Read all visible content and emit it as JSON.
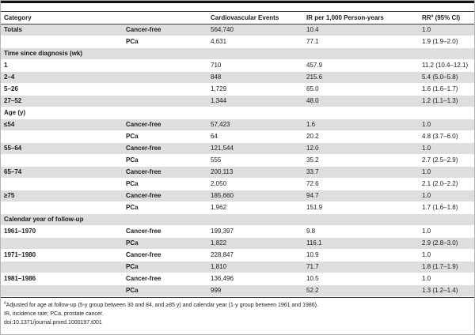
{
  "table": {
    "header": {
      "category": "Category",
      "events": "Cardiovascular Events",
      "ir": "IR per 1,000 Person-years",
      "rr_base": "RR",
      "rr_sup": "a",
      "rr_rest": " (95% CI)"
    },
    "rows": [
      {
        "type": "data",
        "shaded": true,
        "category": "Totals",
        "group": "Cancer-free",
        "events": "564,740",
        "ir": "10.4",
        "rr": "1.0"
      },
      {
        "type": "data",
        "shaded": false,
        "category": "",
        "group": "PCa",
        "events": "4,631",
        "ir": "77.1",
        "rr": "1.9 (1.9–2.0)"
      },
      {
        "type": "section",
        "shaded": true,
        "label": "Time since diagnosis (wk)"
      },
      {
        "type": "data",
        "shaded": false,
        "category": "1",
        "group": "",
        "events": "710",
        "ir": "457.9",
        "rr": "11.2 (10.4–12.1)"
      },
      {
        "type": "data",
        "shaded": true,
        "category": "2–4",
        "group": "",
        "events": "848",
        "ir": "215.6",
        "rr": "5.4 (5.0–5.8)"
      },
      {
        "type": "data",
        "shaded": false,
        "category": "5–26",
        "group": "",
        "events": "1,729",
        "ir": "65.0",
        "rr": "1.6 (1.6–1.7)"
      },
      {
        "type": "data",
        "shaded": true,
        "category": "27–52",
        "group": "",
        "events": "1,344",
        "ir": "48.0",
        "rr": "1.2 (1.1–1.3)"
      },
      {
        "type": "section",
        "shaded": false,
        "label": "Age (y)"
      },
      {
        "type": "data",
        "shaded": true,
        "category": "≤54",
        "group": "Cancer-free",
        "events": "57,423",
        "ir": "1.6",
        "rr": "1.0"
      },
      {
        "type": "data",
        "shaded": false,
        "category": "",
        "group": "PCa",
        "events": "64",
        "ir": "20.2",
        "rr": "4.8 (3.7–6.0)"
      },
      {
        "type": "data",
        "shaded": true,
        "category": "55–64",
        "group": "Cancer-free",
        "events": "121,544",
        "ir": "12.0",
        "rr": "1.0"
      },
      {
        "type": "data",
        "shaded": false,
        "category": "",
        "group": "PCa",
        "events": "555",
        "ir": "35.2",
        "rr": "2.7 (2.5–2.9)"
      },
      {
        "type": "data",
        "shaded": true,
        "category": "65–74",
        "group": "Cancer-free",
        "events": "200,113",
        "ir": "33.7",
        "rr": "1.0"
      },
      {
        "type": "data",
        "shaded": false,
        "category": "",
        "group": "PCa",
        "events": "2,050",
        "ir": "72.6",
        "rr": "2.1 (2.0–2.2)"
      },
      {
        "type": "data",
        "shaded": true,
        "category": "≥75",
        "group": "Cancer-free",
        "events": "185,660",
        "ir": "94.7",
        "rr": "1.0"
      },
      {
        "type": "data",
        "shaded": false,
        "category": "",
        "group": "PCa",
        "events": "1,962",
        "ir": "151.9",
        "rr": "1.7 (1.6–1.8)"
      },
      {
        "type": "section",
        "shaded": true,
        "label": "Calendar year of follow-up"
      },
      {
        "type": "data",
        "shaded": false,
        "category": "1961–1970",
        "group": "Cancer-free",
        "events": "199,397",
        "ir": "9.8",
        "rr": "1.0"
      },
      {
        "type": "data",
        "shaded": true,
        "category": "",
        "group": "PCa",
        "events": "1,822",
        "ir": "116.1",
        "rr": "2.9 (2.8–3.0)"
      },
      {
        "type": "data",
        "shaded": false,
        "category": "1971–1980",
        "group": "Cancer-free",
        "events": "228,847",
        "ir": "10.9",
        "rr": "1.0"
      },
      {
        "type": "data",
        "shaded": true,
        "category": "",
        "group": "PCa",
        "events": "1,810",
        "ir": "71.7",
        "rr": "1.8 (1.7–1.9)"
      },
      {
        "type": "data",
        "shaded": false,
        "category": "1981–1986",
        "group": "Cancer-free",
        "events": "136,496",
        "ir": "10.5",
        "rr": "1.0"
      },
      {
        "type": "data",
        "shaded": true,
        "category": "",
        "group": "PCa",
        "events": "999",
        "ir": "52.2",
        "rr": "1.3 (1.2–1.4)"
      }
    ]
  },
  "footnotes": {
    "note_sup": "a",
    "note": "Adjusted for age at follow-up (5-y group between 30 and 84, and ≥85 y) and calendar year (1-y group between 1961 and 1986).",
    "abbrev": "IR, incidence rate; PCa, prostate cancer.",
    "doi": "doi:10.1371/journal.pmed.1000197.t001"
  },
  "colors": {
    "shaded_row": "#dedede",
    "rule": "#3a3a3a",
    "top_bar": "#111111"
  }
}
